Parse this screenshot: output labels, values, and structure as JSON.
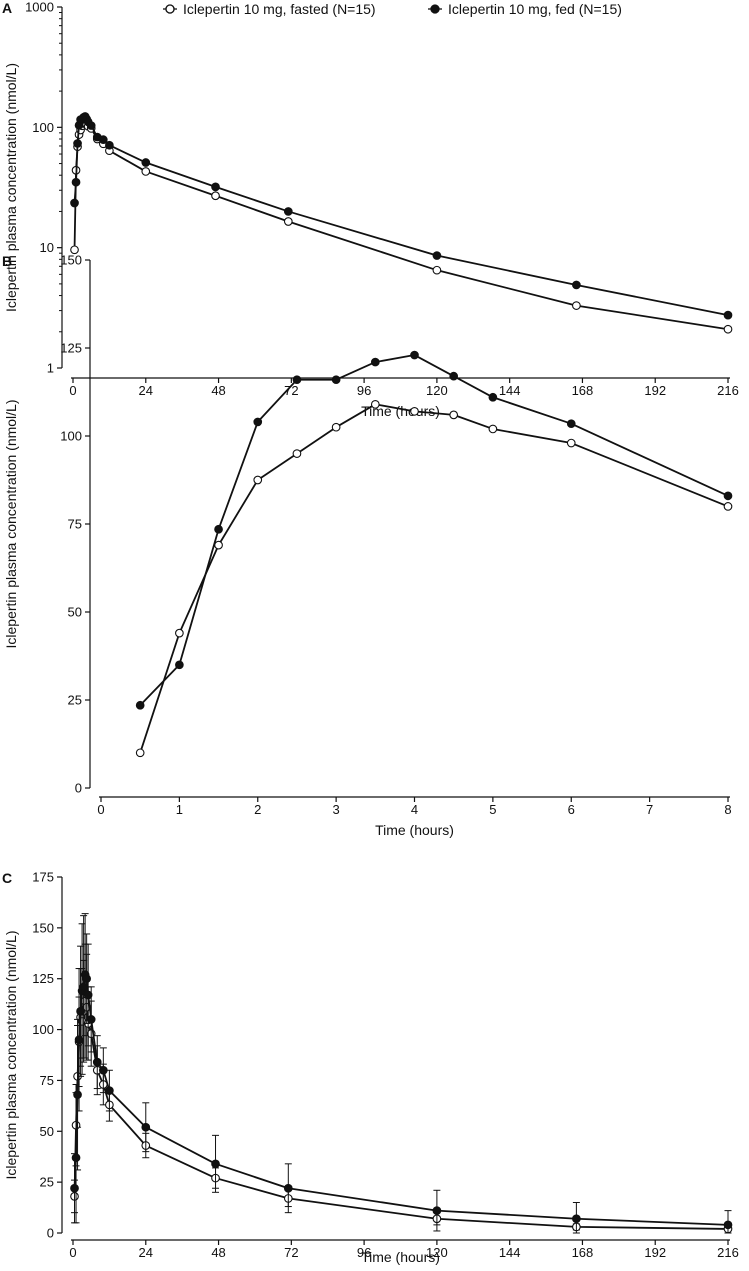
{
  "legend": {
    "fasted": "Iclepertin 10 mg, fasted (N=15)",
    "fed": "Iclepertin 10 mg, fed (N=15)"
  },
  "colors": {
    "line": "#111111",
    "fasted_fill": "#ffffff",
    "fed_fill": "#111111"
  },
  "chart_data": [
    {
      "panel": "A",
      "type": "line",
      "yscale": "log",
      "xlabel": "Time (hours)",
      "ylabel": "Iclepertin plasma concentration (nmol/L)",
      "xlim": [
        -2,
        222
      ],
      "ylim": [
        1,
        1000
      ],
      "xticks": [
        0,
        24,
        48,
        72,
        96,
        120,
        144,
        168,
        192,
        216
      ],
      "xtick_labels": [
        "0",
        "24",
        "48",
        "72",
        "96",
        "120",
        "144",
        "168",
        "192",
        "216"
      ],
      "yticks": [
        1,
        10,
        100,
        1000
      ],
      "ytick_labels": [
        "1",
        "10",
        "100",
        "1000"
      ],
      "series": [
        {
          "name": "Iclepertin 10 mg, fasted (N=15)",
          "marker": "open",
          "x": [
            0.5,
            1,
            1.5,
            2,
            2.5,
            3,
            3.5,
            4,
            4.5,
            5,
            6,
            8,
            10,
            12,
            24,
            47,
            71,
            120,
            166,
            216
          ],
          "y": [
            9.6,
            44,
            69,
            87,
            95,
            103,
            109,
            107,
            106,
            102,
            98,
            80,
            73,
            64,
            43,
            27,
            16.5,
            6.5,
            3.3,
            2.1
          ]
        },
        {
          "name": "Iclepertin 10 mg, fed (N=15)",
          "marker": "filled",
          "x": [
            0.5,
            1,
            1.5,
            2,
            2.5,
            3,
            3.5,
            4,
            4.5,
            5,
            6,
            8,
            10,
            12,
            24,
            47,
            71,
            120,
            166,
            216
          ],
          "y": [
            23.5,
            35,
            73.5,
            104,
            116,
            116,
            121,
            123,
            117,
            111,
            103.5,
            83,
            79,
            71,
            51,
            32,
            20,
            8.6,
            4.9,
            2.75
          ]
        }
      ]
    },
    {
      "panel": "B",
      "type": "line",
      "yscale": "linear",
      "xlabel": "Time (hours)",
      "ylabel": "Iclepertin plasma concentration (nmol/L)",
      "xlim": [
        -0.1,
        8.2
      ],
      "ylim": [
        0,
        150
      ],
      "xticks": [
        0,
        1,
        2,
        3,
        4,
        5,
        6,
        7,
        8
      ],
      "xtick_labels": [
        "0",
        "1",
        "2",
        "3",
        "4",
        "5",
        "6",
        "7",
        "8"
      ],
      "yticks": [
        0,
        25,
        50,
        75,
        100,
        125,
        150
      ],
      "ytick_labels": [
        "0",
        "25",
        "50",
        "75",
        "100",
        "125",
        "150"
      ],
      "series": [
        {
          "name": "Iclepertin 10 mg, fasted (N=15)",
          "marker": "open",
          "x": [
            0.5,
            1,
            1.5,
            2,
            2.5,
            3,
            3.5,
            4,
            4.5,
            5,
            6,
            8
          ],
          "y": [
            10,
            44,
            69,
            87.5,
            95,
            102.5,
            109,
            107,
            106,
            102,
            98,
            80
          ]
        },
        {
          "name": "Iclepertin 10 mg, fed (N=15)",
          "marker": "filled",
          "x": [
            0.5,
            1,
            1.5,
            2,
            2.5,
            3,
            3.5,
            4,
            4.5,
            5,
            6,
            8
          ],
          "y": [
            23.5,
            35,
            73.5,
            104,
            116,
            116,
            121,
            123,
            117,
            111,
            103.5,
            83
          ]
        }
      ]
    },
    {
      "panel": "C",
      "type": "line",
      "yscale": "linear",
      "error_bars": true,
      "xlabel": "Time (hours)",
      "ylabel": "Iclepertin plasma concentration (nmol/L)",
      "xlim": [
        -2,
        222
      ],
      "ylim": [
        0,
        175
      ],
      "xticks": [
        0,
        24,
        48,
        72,
        96,
        120,
        144,
        168,
        192,
        216
      ],
      "xtick_labels": [
        "0",
        "24",
        "48",
        "72",
        "96",
        "120",
        "144",
        "168",
        "192",
        "216"
      ],
      "yticks": [
        0,
        25,
        50,
        75,
        100,
        125,
        150,
        175
      ],
      "ytick_labels": [
        "0",
        "25",
        "50",
        "75",
        "100",
        "125",
        "150",
        "175"
      ],
      "series": [
        {
          "name": "Iclepertin 10 mg, fasted (N=15)",
          "marker": "open",
          "x": [
            0.5,
            1,
            1.5,
            2,
            2.5,
            3,
            3.5,
            4,
            4.5,
            5,
            6,
            8,
            10,
            12,
            24,
            47,
            71,
            120,
            166,
            216
          ],
          "y": [
            18,
            53,
            77,
            94,
            106,
            104,
            109,
            114,
            111,
            103,
            98,
            80,
            73,
            63,
            43,
            27,
            17,
            7,
            3,
            2
          ],
          "err": [
            8,
            20,
            25,
            22,
            24,
            26,
            25,
            28,
            26,
            18,
            16,
            12,
            10,
            8,
            6,
            5,
            4,
            3,
            1.5,
            1
          ]
        },
        {
          "name": "Iclepertin 10 mg, fed (N=15)",
          "marker": "filled",
          "x": [
            0.5,
            1,
            1.5,
            2,
            2.5,
            3,
            3.5,
            4,
            4.5,
            5,
            6,
            8,
            10,
            12,
            24,
            47,
            71,
            120,
            166,
            216
          ],
          "y": [
            22,
            37,
            68,
            95,
            109,
            119,
            121,
            127,
            125,
            117,
            105,
            84,
            80,
            70,
            52,
            34,
            22,
            11,
            7,
            4
          ],
          "err": [
            17,
            32,
            37,
            35,
            32,
            33,
            35,
            30,
            22,
            25,
            16,
            13,
            11,
            10,
            12,
            14,
            12,
            10,
            8,
            7
          ]
        }
      ]
    }
  ]
}
